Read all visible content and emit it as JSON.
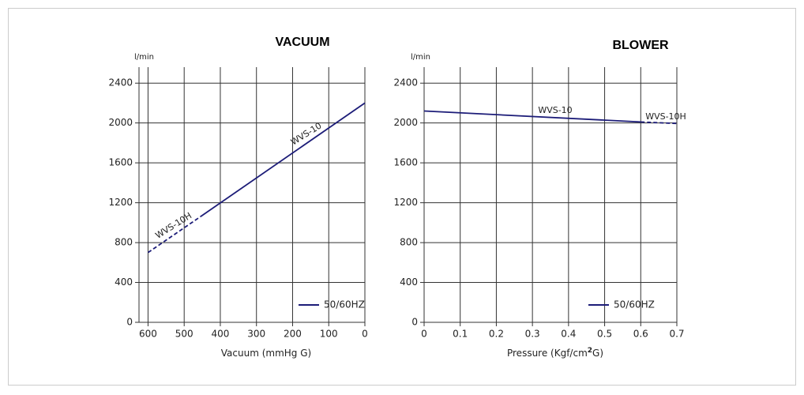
{
  "chart_data": [
    {
      "type": "line",
      "title": "VACUUM",
      "y_unit": "l/min",
      "x_label": "Vacuum (mmHg G)",
      "xlim": [
        625,
        0
      ],
      "xticks": [
        600,
        500,
        400,
        300,
        200,
        100,
        0
      ],
      "ylim": [
        0,
        2560
      ],
      "yticks": [
        0,
        400,
        800,
        1200,
        1600,
        2000,
        2400
      ],
      "grid": true,
      "legend_label": "50/60HZ",
      "legend": "lower right",
      "series": [
        {
          "name": "WVS-10",
          "color": "#1c1c78",
          "style": "solid",
          "x": [
            455,
            0
          ],
          "values": [
            1060,
            2200
          ]
        },
        {
          "name": "WVS-10H",
          "color": "#1c1c78",
          "style": "dashed",
          "x": [
            600,
            455
          ],
          "values": [
            700,
            1060
          ]
        }
      ]
    },
    {
      "type": "line",
      "title": "BLOWER",
      "y_unit": "l/min",
      "x_label": "Pressure (Kgf/cm",
      "x_label_sup": "2",
      "x_label_end": "G)",
      "xlim": [
        0,
        0.7
      ],
      "xticks": [
        0,
        0.1,
        0.2,
        0.3,
        0.4,
        0.5,
        0.6,
        0.7
      ],
      "ylim": [
        0,
        2560
      ],
      "yticks": [
        0,
        400,
        800,
        1200,
        1600,
        2000,
        2400
      ],
      "grid": true,
      "legend_label": "50/60HZ",
      "legend": "lower right",
      "series": [
        {
          "name": "WVS-10",
          "color": "#1c1c78",
          "style": "solid",
          "x": [
            0,
            0.6
          ],
          "values": [
            2120,
            2010
          ]
        },
        {
          "name": "WVS-10H",
          "color": "#1c1c78",
          "style": "dashed",
          "x": [
            0.6,
            0.7
          ],
          "values": [
            2010,
            1995
          ]
        }
      ]
    }
  ]
}
